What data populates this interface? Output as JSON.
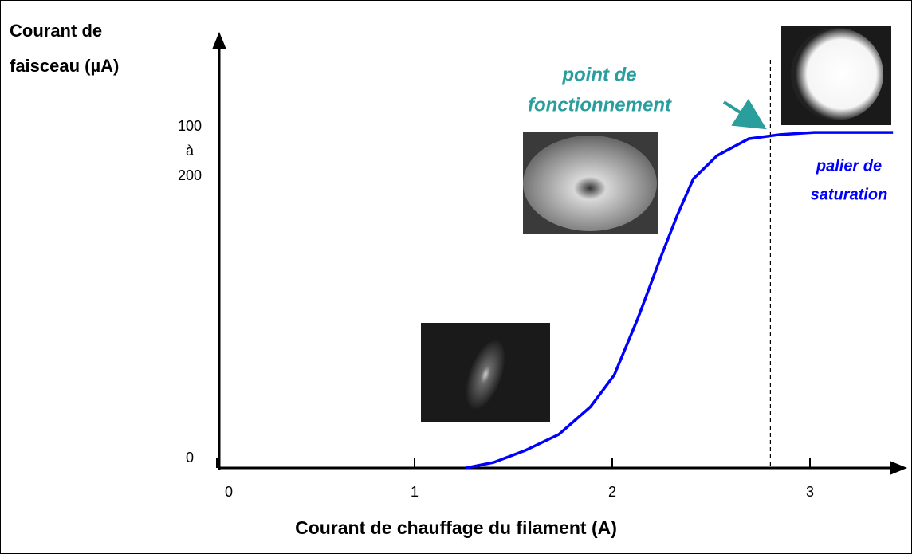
{
  "chart_data": {
    "type": "line",
    "ylabel": [
      "Courant de",
      "faisceau (µA)"
    ],
    "xlabel": "Courant de chauffage du filament (A)",
    "x": [
      1.26,
      1.4,
      1.56,
      1.73,
      1.89,
      2.01,
      2.13,
      2.25,
      2.33,
      2.41,
      2.53,
      2.69,
      2.85,
      3.02,
      3.42
    ],
    "series": [
      {
        "color": "#0000ff",
        "values": [
          0,
          2.6,
          8.3,
          15.9,
          29,
          44,
          71,
          101,
          120,
          137,
          148,
          156,
          158,
          159,
          159
        ]
      }
    ],
    "xlim": [
      0,
      3.45
    ],
    "xticks": [
      0,
      1,
      2,
      3
    ],
    "ylim": [
      0,
      205
    ],
    "yticks": [
      0,
      {
        "value": 150,
        "label": "100 à 200"
      }
    ],
    "marker_x": 2.8,
    "annotations": [
      {
        "lines": [
          "point de",
          "fonctionnement"
        ],
        "color": "#2a9d9d"
      },
      {
        "lines": [
          "palier de",
          "saturation"
        ],
        "color": "#0000ff"
      }
    ]
  }
}
